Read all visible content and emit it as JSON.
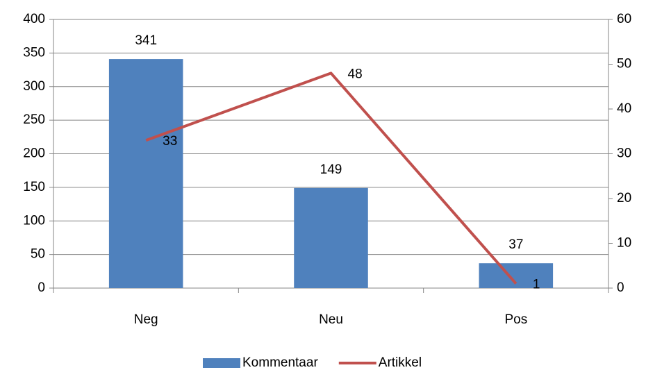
{
  "chart_data": {
    "type": "bar",
    "categories": [
      "Neg",
      "Neu",
      "Pos"
    ],
    "series": [
      {
        "name": "Kommentaar",
        "type": "bar",
        "color": "#4f81bd",
        "values": [
          341,
          149,
          37
        ]
      },
      {
        "name": "Artikkel",
        "type": "line",
        "axis": "y2",
        "color": "#c0504d",
        "values": [
          33,
          48,
          1
        ]
      }
    ],
    "ylim": [
      0,
      400
    ],
    "yticks": [
      0,
      50,
      100,
      150,
      200,
      250,
      300,
      350,
      400
    ],
    "y2lim": [
      0,
      60
    ],
    "y2ticks": [
      0,
      10,
      20,
      30,
      40,
      50,
      60
    ],
    "grid": true,
    "legend": "bottom"
  }
}
